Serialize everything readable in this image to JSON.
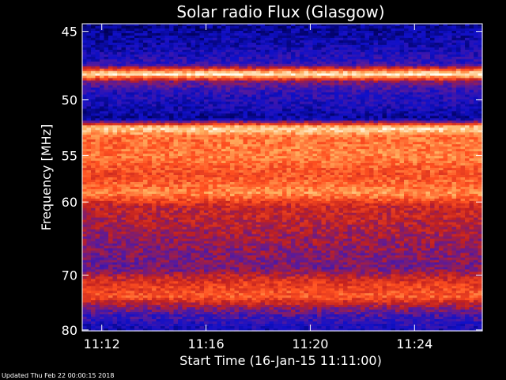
{
  "chart_data": {
    "type": "heatmap",
    "title": "Solar radio Flux (Glasgow)",
    "xlabel": "Start Time (16-Jan-15 11:11:00)",
    "ylabel": "Frequency [MHz]",
    "x_ticks": [
      "11:12",
      "11:16",
      "11:20",
      "11:24"
    ],
    "x_tick_minutes": [
      12,
      16,
      20,
      24
    ],
    "xlim_minutes": [
      11.25,
      26.6
    ],
    "y_ticks": [
      45,
      50,
      55,
      60,
      70,
      80
    ],
    "ylim": [
      44.5,
      80.2
    ],
    "y_scale": "reciprocal",
    "colormap": [
      "#00005a",
      "#1010c8",
      "#5a1a9a",
      "#c02020",
      "#ff5020",
      "#ffb060",
      "#fffff0"
    ],
    "intensity_profile": [
      {
        "freq": 44.5,
        "level": 0.05
      },
      {
        "freq": 46.0,
        "level": 0.12
      },
      {
        "freq": 47.3,
        "level": 0.22
      },
      {
        "freq": 48.0,
        "level": 0.98
      },
      {
        "freq": 48.6,
        "level": 0.35
      },
      {
        "freq": 49.4,
        "level": 0.2
      },
      {
        "freq": 50.5,
        "level": 0.15
      },
      {
        "freq": 51.6,
        "level": 0.06
      },
      {
        "freq": 52.4,
        "level": 0.92
      },
      {
        "freq": 53.2,
        "level": 0.7
      },
      {
        "freq": 55.0,
        "level": 0.72
      },
      {
        "freq": 57.0,
        "level": 0.62
      },
      {
        "freq": 59.0,
        "level": 0.75
      },
      {
        "freq": 60.5,
        "level": 0.5
      },
      {
        "freq": 63.0,
        "level": 0.45
      },
      {
        "freq": 66.0,
        "level": 0.38
      },
      {
        "freq": 69.0,
        "level": 0.35
      },
      {
        "freq": 71.0,
        "level": 0.55
      },
      {
        "freq": 73.5,
        "level": 0.65
      },
      {
        "freq": 76.0,
        "level": 0.35
      },
      {
        "freq": 78.5,
        "level": 0.2
      },
      {
        "freq": 80.2,
        "level": 0.12
      }
    ],
    "segment_boundaries_minutes": [
      12.9,
      16.0
    ],
    "grid": false,
    "legend": "none"
  },
  "footer": {
    "updated": "Updated Thu Feb 22 00:00:15 2018"
  }
}
